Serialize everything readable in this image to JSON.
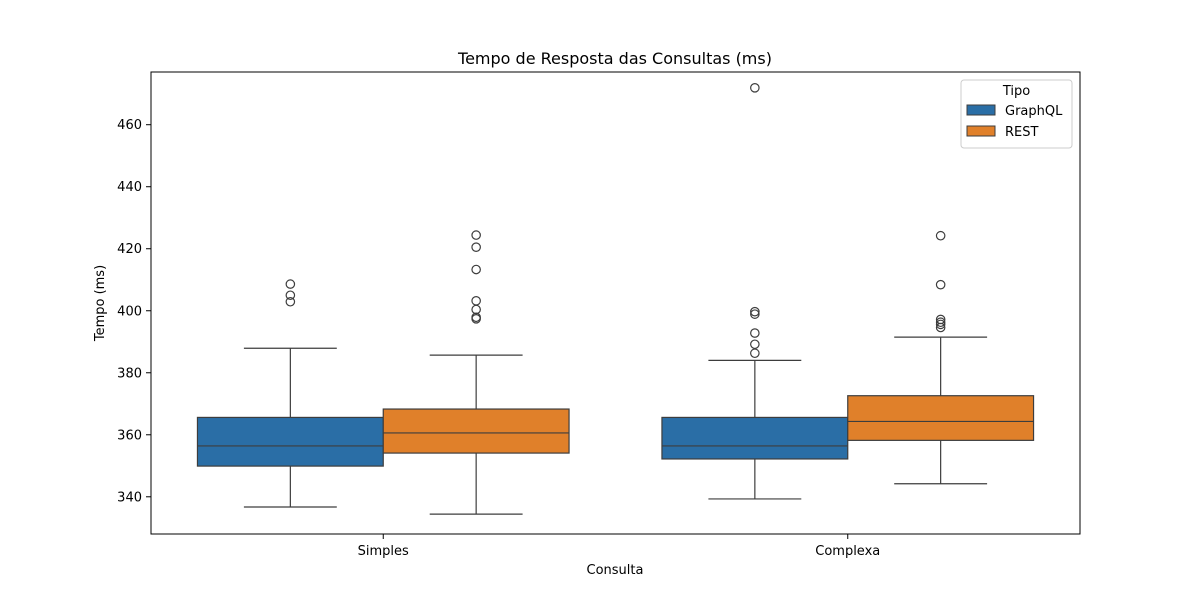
{
  "chart_data": {
    "type": "box",
    "title": "Tempo de Resposta das Consultas (ms)",
    "xlabel": "Consulta",
    "ylabel": "Tempo (ms)",
    "categories": [
      "Simples",
      "Complexa"
    ],
    "ylim": [
      328,
      477
    ],
    "yticks": [
      340,
      360,
      380,
      400,
      420,
      440,
      460
    ],
    "grid": false,
    "legend": {
      "title": "Tipo",
      "placement": "top-right"
    },
    "series": [
      {
        "name": "GraphQL",
        "color": "#2a6ea6",
        "boxes": [
          {
            "whisker_low": 336.7,
            "q1": 349.9,
            "median": 356.4,
            "q3": 365.6,
            "whisker_high": 387.9,
            "outliers": [
              402.9,
              405.0,
              408.6
            ]
          },
          {
            "whisker_low": 339.3,
            "q1": 352.2,
            "median": 356.4,
            "q3": 365.6,
            "whisker_high": 384.0,
            "outliers": [
              386.3,
              389.2,
              392.8,
              398.9,
              399.7,
              471.9
            ]
          }
        ]
      },
      {
        "name": "REST",
        "color": "#e0802a",
        "boxes": [
          {
            "whisker_low": 334.4,
            "q1": 354.1,
            "median": 360.6,
            "q3": 368.3,
            "whisker_high": 385.7,
            "outliers": [
              397.4,
              397.9,
              400.4,
              403.2,
              413.3,
              420.5,
              424.4
            ]
          },
          {
            "whisker_low": 344.2,
            "q1": 358.2,
            "median": 364.3,
            "q3": 372.6,
            "whisker_high": 391.5,
            "outliers": [
              394.6,
              395.6,
              396.3,
              397.2,
              408.4,
              424.2
            ]
          }
        ]
      }
    ]
  }
}
